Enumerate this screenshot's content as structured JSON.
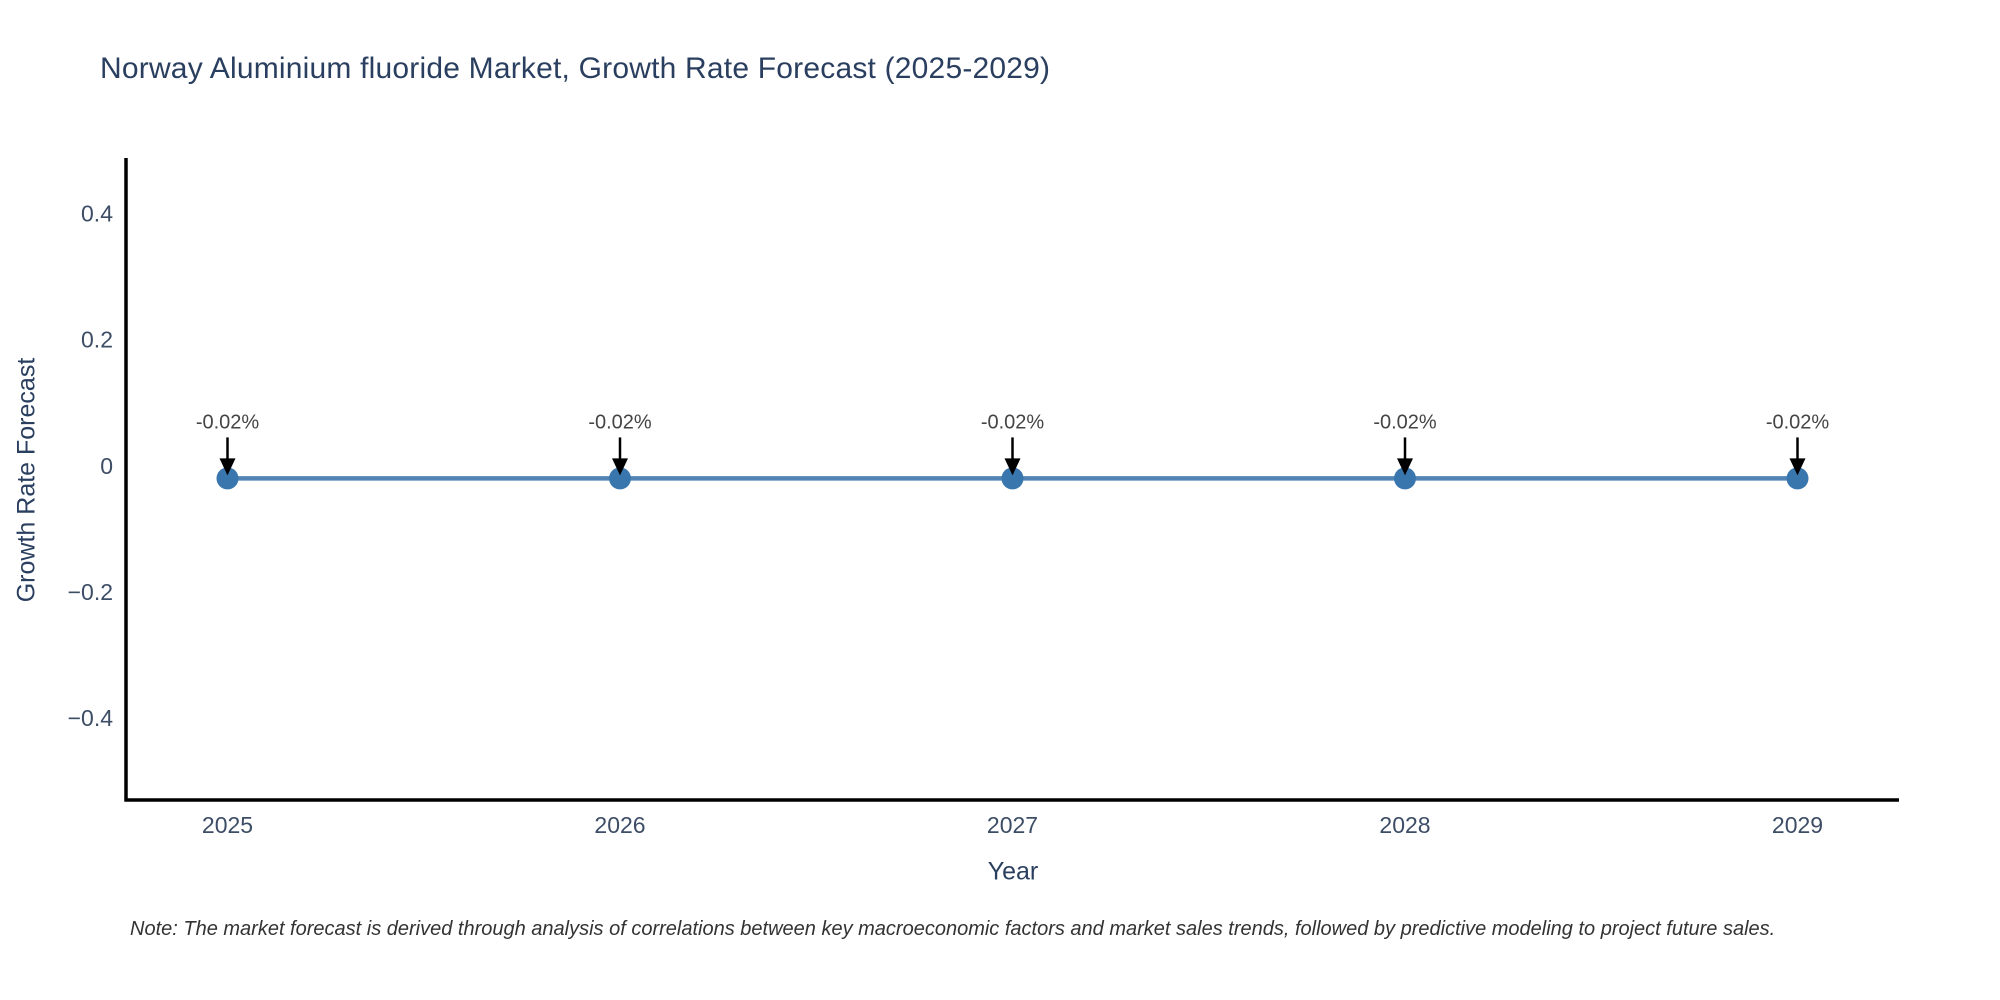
{
  "note": "Note: The market forecast is derived through analysis of correlations between key macroeconomic factors and market sales trends, followed by predictive modeling to project future sales.",
  "chart_data": {
    "type": "line",
    "title": "Norway Aluminium fluoride Market, Growth Rate Forecast (2025-2029)",
    "xlabel": "Year",
    "ylabel": "Growth Rate Forecast",
    "categories": [
      "2025",
      "2026",
      "2027",
      "2028",
      "2029"
    ],
    "values": [
      -0.02,
      -0.02,
      -0.02,
      -0.02,
      -0.02
    ],
    "point_labels": [
      "-0.02%",
      "-0.02%",
      "-0.02%",
      "-0.02%",
      "-0.02%"
    ],
    "yticks": [
      0.4,
      0.2,
      0,
      -0.2,
      -0.4
    ],
    "ytick_labels": [
      "0.4",
      "0.2",
      "0",
      "−0.2",
      "−0.4"
    ],
    "ylim": [
      -0.53,
      0.485
    ],
    "grid": false,
    "legend": "none",
    "colors": {
      "line": "#5285b5",
      "marker": "#3a76ae",
      "axis": "#000000",
      "arrow": "#000000",
      "annotation_text": "#444444",
      "title_text": "#2a3f5f",
      "axis_title_text": "#2a3f5f",
      "tick_text": "#3d4d66",
      "note_text": "#333333",
      "background": "#ffffff"
    }
  }
}
